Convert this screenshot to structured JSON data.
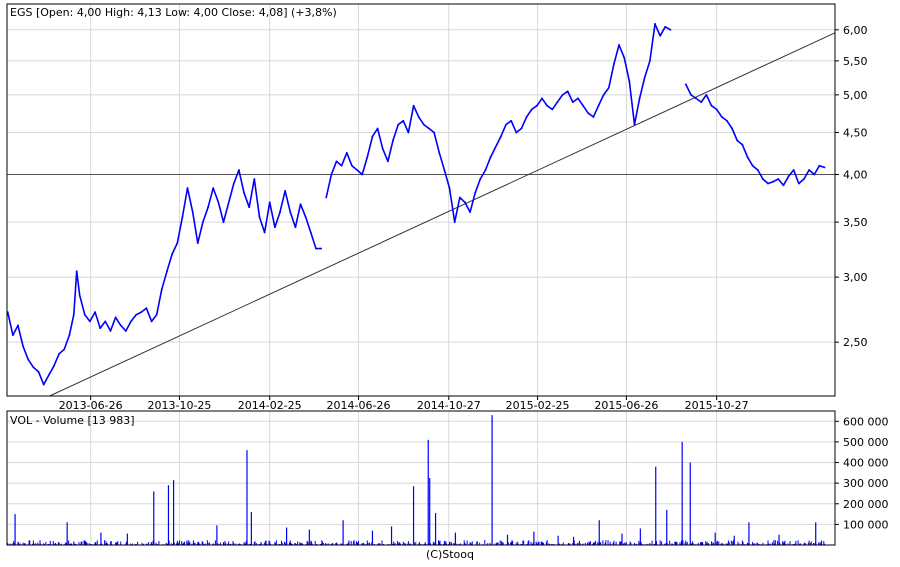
{
  "chart_data": [
    {
      "type": "line",
      "panel": "price",
      "header": "EGS [Open: 4,00  High: 4,13  Low: 4,00  Close: 4,08] (+3,8%)",
      "y_scale": "log",
      "ylim": [
        2.15,
        6.45
      ],
      "y_ticks": [
        2.5,
        3.0,
        3.5,
        4.0,
        4.5,
        5.0,
        5.5,
        6.0
      ],
      "y_tick_labels": [
        "2,50",
        "3,00",
        "3,50",
        "4,00",
        "4,50",
        "5,00",
        "5,50",
        "6,00"
      ],
      "x_range": [
        "2013-03-04",
        "2016-03-24"
      ],
      "x_ticks": [
        "2013-06-26",
        "2013-10-25",
        "2014-02-25",
        "2014-06-26",
        "2014-10-27",
        "2015-02-25",
        "2015-06-26",
        "2015-10-27"
      ],
      "reference_line": {
        "y": 4.0
      },
      "trend_line": {
        "x": [
          "2013-05-01",
          "2016-03-24"
        ],
        "y": [
          2.15,
          5.95
        ]
      },
      "series": [
        {
          "color": "#0000ff",
          "segments": [
            {
              "x": [
                "2013-03-05",
                "2013-03-12",
                "2013-03-19",
                "2013-03-26",
                "2013-04-02",
                "2013-04-09",
                "2013-04-16",
                "2013-04-23",
                "2013-04-30",
                "2013-05-07",
                "2013-05-14",
                "2013-05-21",
                "2013-05-28",
                "2013-06-03",
                "2013-06-07",
                "2013-06-11",
                "2013-06-18",
                "2013-06-25",
                "2013-07-02",
                "2013-07-09",
                "2013-07-16",
                "2013-07-23",
                "2013-07-30",
                "2013-08-06",
                "2013-08-13",
                "2013-08-20",
                "2013-08-27",
                "2013-09-03",
                "2013-09-10",
                "2013-09-17",
                "2013-09-24",
                "2013-10-01",
                "2013-10-08",
                "2013-10-15",
                "2013-10-22",
                "2013-10-29",
                "2013-11-05",
                "2013-11-12",
                "2013-11-19",
                "2013-11-26",
                "2013-12-03",
                "2013-12-10",
                "2013-12-17",
                "2013-12-24",
                "2014-01-07",
                "2014-01-14",
                "2014-01-21",
                "2014-01-28",
                "2014-02-04",
                "2014-02-11",
                "2014-02-18",
                "2014-02-25",
                "2014-03-04",
                "2014-03-11",
                "2014-03-18",
                "2014-03-25",
                "2014-04-01",
                "2014-04-08",
                "2014-04-15",
                "2014-04-22",
                "2014-04-29",
                "2014-05-06"
              ],
              "y": [
                2.72,
                2.55,
                2.62,
                2.47,
                2.38,
                2.33,
                2.3,
                2.22,
                2.28,
                2.34,
                2.42,
                2.45,
                2.55,
                2.7,
                3.05,
                2.85,
                2.7,
                2.65,
                2.72,
                2.6,
                2.65,
                2.58,
                2.68,
                2.62,
                2.58,
                2.65,
                2.7,
                2.72,
                2.75,
                2.65,
                2.7,
                2.9,
                3.05,
                3.2,
                3.3,
                3.55,
                3.85,
                3.6,
                3.3,
                3.5,
                3.65,
                3.85,
                3.7,
                3.5,
                3.9,
                4.05,
                3.8,
                3.65,
                3.95,
                3.55,
                3.4,
                3.7,
                3.45,
                3.6,
                3.82,
                3.6,
                3.45,
                3.68,
                3.55,
                3.4,
                3.25,
                3.25
              ]
            },
            {
              "x": [
                "2014-05-13",
                "2014-05-20",
                "2014-05-27",
                "2014-06-03",
                "2014-06-10",
                "2014-06-17",
                "2014-06-24",
                "2014-07-01",
                "2014-07-08",
                "2014-07-15",
                "2014-07-22",
                "2014-07-29",
                "2014-08-05",
                "2014-08-12",
                "2014-08-19",
                "2014-08-26",
                "2014-09-02",
                "2014-09-09",
                "2014-09-16",
                "2014-09-23",
                "2014-09-30",
                "2014-10-07",
                "2014-10-14",
                "2014-10-21",
                "2014-10-28",
                "2014-11-04",
                "2014-11-11",
                "2014-11-18",
                "2014-11-25",
                "2014-12-02",
                "2014-12-09",
                "2014-12-16",
                "2014-12-23",
                "2015-01-06",
                "2015-01-13",
                "2015-01-20",
                "2015-01-27",
                "2015-02-03",
                "2015-02-10",
                "2015-02-17",
                "2015-02-24",
                "2015-03-03",
                "2015-03-10",
                "2015-03-17",
                "2015-03-24",
                "2015-03-31",
                "2015-04-07",
                "2015-04-14",
                "2015-04-21",
                "2015-04-28",
                "2015-05-05",
                "2015-05-12",
                "2015-05-19",
                "2015-05-26",
                "2015-06-02",
                "2015-06-09",
                "2015-06-16",
                "2015-06-23",
                "2015-06-30",
                "2015-07-07",
                "2015-07-14",
                "2015-07-21",
                "2015-07-28",
                "2015-08-04",
                "2015-08-11",
                "2015-08-18",
                "2015-08-25"
              ],
              "y": [
                3.75,
                4.0,
                4.15,
                4.1,
                4.25,
                4.1,
                4.05,
                4.0,
                4.2,
                4.45,
                4.55,
                4.3,
                4.15,
                4.4,
                4.6,
                4.65,
                4.5,
                4.85,
                4.7,
                4.6,
                4.55,
                4.5,
                4.25,
                4.05,
                3.85,
                3.5,
                3.75,
                3.7,
                3.6,
                3.8,
                3.95,
                4.05,
                4.2,
                4.45,
                4.6,
                4.65,
                4.5,
                4.55,
                4.7,
                4.8,
                4.85,
                4.95,
                4.85,
                4.8,
                4.9,
                5.0,
                5.05,
                4.9,
                4.95,
                4.85,
                4.75,
                4.7,
                4.85,
                5.0,
                5.1,
                5.45,
                5.75,
                5.55,
                5.2,
                4.6,
                4.95,
                5.25,
                5.5,
                6.1,
                5.9,
                6.05,
                6.0
              ]
            },
            {
              "x": [
                "2015-09-15",
                "2015-09-22",
                "2015-09-29",
                "2015-10-06",
                "2015-10-13",
                "2015-10-20",
                "2015-10-27",
                "2015-11-03",
                "2015-11-10",
                "2015-11-17",
                "2015-11-24",
                "2015-12-01",
                "2015-12-08",
                "2015-12-15",
                "2015-12-22",
                "2015-12-29",
                "2016-01-05",
                "2016-01-12",
                "2016-01-19",
                "2016-01-26",
                "2016-02-02",
                "2016-02-09",
                "2016-02-16",
                "2016-02-23",
                "2016-03-01",
                "2016-03-08",
                "2016-03-15",
                "2016-03-22"
              ],
              "y": [
                5.15,
                5.0,
                4.95,
                4.9,
                5.0,
                4.85,
                4.8,
                4.7,
                4.65,
                4.55,
                4.4,
                4.35,
                4.2,
                4.1,
                4.05,
                3.95,
                3.9,
                3.92,
                3.95,
                3.88,
                3.98,
                4.05,
                3.9,
                3.95,
                4.05,
                4.0,
                4.1,
                4.08
              ]
            }
          ]
        }
      ]
    },
    {
      "type": "bar",
      "panel": "volume",
      "header": "VOL - Volume [13 983]",
      "ylim": [
        0,
        650000
      ],
      "y_ticks": [
        100000,
        200000,
        300000,
        400000,
        500000,
        600000
      ],
      "y_tick_labels": [
        "100 000",
        "200 000",
        "300 000",
        "400 000",
        "500 000",
        "600 000"
      ],
      "x_range": [
        "2013-03-04",
        "2016-03-24"
      ],
      "baseline_volume": 10000,
      "spikes": {
        "x": [
          "2013-03-15",
          "2013-05-25",
          "2013-09-20",
          "2013-10-10",
          "2013-10-17",
          "2014-01-25",
          "2014-01-31",
          "2014-06-05",
          "2014-09-09",
          "2014-09-29",
          "2014-10-01",
          "2014-10-09",
          "2014-12-25",
          "2015-05-20",
          "2015-08-05",
          "2015-08-20",
          "2015-09-10",
          "2015-09-21",
          "2015-12-10",
          "2016-03-10",
          "2013-07-10",
          "2013-08-15",
          "2013-12-15",
          "2014-03-20",
          "2014-04-20",
          "2014-07-15",
          "2014-08-10",
          "2014-11-05",
          "2015-01-15",
          "2015-02-20",
          "2015-03-25",
          "2015-04-15",
          "2015-06-20",
          "2015-07-15",
          "2015-10-25",
          "2015-11-20",
          "2016-01-20"
        ],
        "values": [
          150000,
          110000,
          260000,
          290000,
          315000,
          460000,
          160000,
          120000,
          285000,
          510000,
          325000,
          155000,
          630000,
          120000,
          380000,
          170000,
          500000,
          400000,
          110000,
          110000,
          60000,
          55000,
          95000,
          85000,
          75000,
          70000,
          90000,
          60000,
          50000,
          65000,
          45000,
          40000,
          55000,
          80000,
          60000,
          45000,
          50000
        ]
      }
    }
  ],
  "footer": "(C)Stooq"
}
